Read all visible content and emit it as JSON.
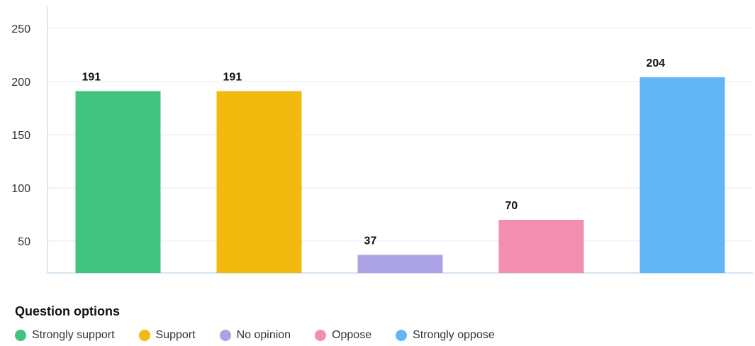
{
  "chart_data": {
    "type": "bar",
    "categories": [
      "Strongly support",
      "Support",
      "No opinion",
      "Oppose",
      "Strongly oppose"
    ],
    "values": [
      191,
      191,
      37,
      70,
      204
    ],
    "data_labels": [
      "191",
      "191",
      "37",
      "70",
      "204"
    ],
    "colors": [
      "#40c47f",
      "#f2b90f",
      "#aba3e6",
      "#f28fb0",
      "#63b6f6"
    ],
    "y_ticks": [
      50,
      100,
      150,
      200,
      250
    ],
    "y_tick_labels": [
      "50",
      "100",
      "150",
      "200",
      "250"
    ],
    "ylim": [
      20,
      270
    ],
    "grid": true,
    "legend_position": "bottom-left",
    "title": "",
    "xlabel": "",
    "ylabel": ""
  },
  "legend": {
    "title": "Question options",
    "items": [
      {
        "label": "Strongly support",
        "color": "#40c47f"
      },
      {
        "label": "Support",
        "color": "#f2b90f"
      },
      {
        "label": "No opinion",
        "color": "#aba3e6"
      },
      {
        "label": "Oppose",
        "color": "#f28fb0"
      },
      {
        "label": "Strongly oppose",
        "color": "#63b6f6"
      }
    ]
  }
}
